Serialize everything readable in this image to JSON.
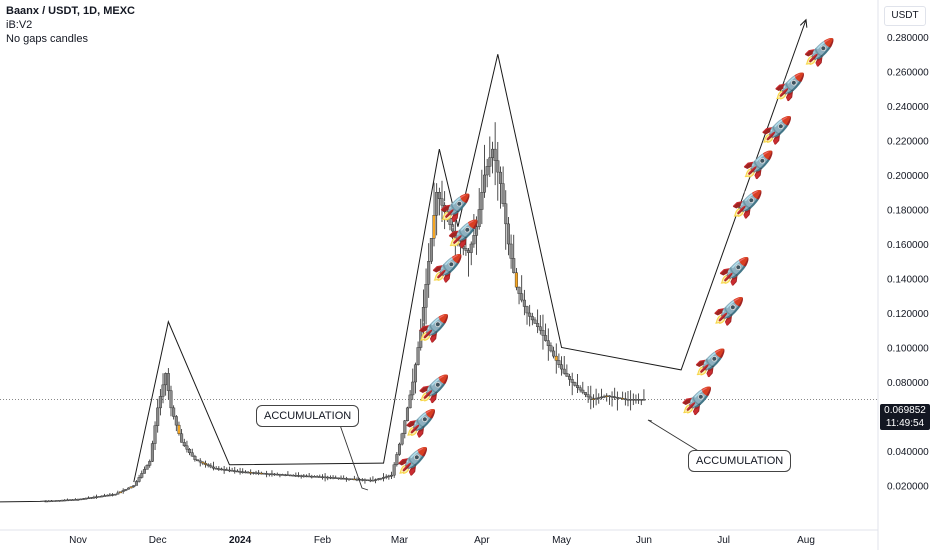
{
  "header": {
    "symbol": "Baanx / USDT, 1D, MEXC",
    "indicator": "iB:V2",
    "setting": "No gaps candles"
  },
  "price_axis": {
    "unit": "USDT",
    "ticks": [
      "0.280000",
      "0.260000",
      "0.240000",
      "0.220000",
      "0.200000",
      "0.180000",
      "0.160000",
      "0.140000",
      "0.120000",
      "0.100000",
      "0.080000",
      "0.060000",
      "0.040000",
      "0.020000"
    ]
  },
  "time_axis": {
    "ticks": [
      "Nov",
      "Dec",
      "2024",
      "Feb",
      "Mar",
      "Apr",
      "May",
      "Jun",
      "Jul",
      "Aug"
    ]
  },
  "current_price": {
    "value": "0.069852",
    "countdown": "11:49:54"
  },
  "annotations": {
    "left_label": "ACCUMULATION",
    "right_label": "ACCUMULATION"
  },
  "colors": {
    "candle_body": "#8a8a8a",
    "candle_outline": "#222222",
    "highlight_candle": "#f5a623",
    "line": "#1a1a1a",
    "price_line": "#888888",
    "price_tag_bg": "#131722"
  },
  "icons": {
    "rocket": "🚀"
  },
  "chart_data": {
    "type": "line",
    "title": "Baanx / USDT, 1D, MEXC",
    "ylabel": "USDT",
    "ylim": [
      0.01,
      0.29
    ],
    "x_ticks": [
      "Nov",
      "Dec",
      "2024",
      "Feb",
      "Mar",
      "Apr",
      "May",
      "Jun",
      "Jul",
      "Aug"
    ],
    "series": [
      {
        "name": "price",
        "x": [
          "2023-10-20",
          "2023-11-01",
          "2023-11-15",
          "2023-11-22",
          "2023-11-28",
          "2023-12-01",
          "2023-12-04",
          "2023-12-06",
          "2023-12-10",
          "2023-12-15",
          "2023-12-22",
          "2024-01-01",
          "2024-01-10",
          "2024-01-20",
          "2024-02-01",
          "2024-02-10",
          "2024-02-20",
          "2024-02-27",
          "2024-03-02",
          "2024-03-06",
          "2024-03-09",
          "2024-03-12",
          "2024-03-15",
          "2024-03-19",
          "2024-03-23",
          "2024-03-27",
          "2024-03-30",
          "2024-04-02",
          "2024-04-05",
          "2024-04-08",
          "2024-04-11",
          "2024-04-14",
          "2024-04-18",
          "2024-04-23",
          "2024-04-28",
          "2024-05-02",
          "2024-05-06",
          "2024-05-12",
          "2024-05-18",
          "2024-05-25",
          "2024-05-28",
          "2024-06-01"
        ],
        "y": [
          0.011,
          0.012,
          0.015,
          0.02,
          0.034,
          0.065,
          0.085,
          0.065,
          0.045,
          0.035,
          0.03,
          0.028,
          0.027,
          0.026,
          0.025,
          0.024,
          0.023,
          0.026,
          0.05,
          0.08,
          0.11,
          0.15,
          0.19,
          0.175,
          0.16,
          0.155,
          0.17,
          0.2,
          0.215,
          0.195,
          0.16,
          0.135,
          0.12,
          0.11,
          0.095,
          0.085,
          0.078,
          0.07,
          0.072,
          0.07,
          0.07,
          0.0699
        ]
      }
    ],
    "projection": {
      "x": [
        "2023-11-22",
        "2023-12-05",
        "2023-12-28",
        "2024-02-24",
        "2024-03-16",
        "2024-03-23",
        "2024-04-07",
        "2024-05-01",
        "2024-06-15",
        "2024-08-01"
      ],
      "y": [
        0.022,
        0.115,
        0.032,
        0.033,
        0.215,
        0.17,
        0.27,
        0.1,
        0.087,
        0.29
      ]
    },
    "rockets": {
      "x": [
        "2024-03-06",
        "2024-03-09",
        "2024-03-14",
        "2024-03-14",
        "2024-03-19",
        "2024-03-22",
        "2024-03-25",
        "2024-06-21",
        "2024-06-26",
        "2024-07-03",
        "2024-07-05",
        "2024-07-10",
        "2024-07-14",
        "2024-07-21",
        "2024-07-26",
        "2024-08-06"
      ],
      "y": [
        0.033,
        0.055,
        0.075,
        0.11,
        0.145,
        0.18,
        0.165,
        0.068,
        0.09,
        0.12,
        0.143,
        0.182,
        0.205,
        0.225,
        0.25,
        0.27
      ]
    }
  }
}
